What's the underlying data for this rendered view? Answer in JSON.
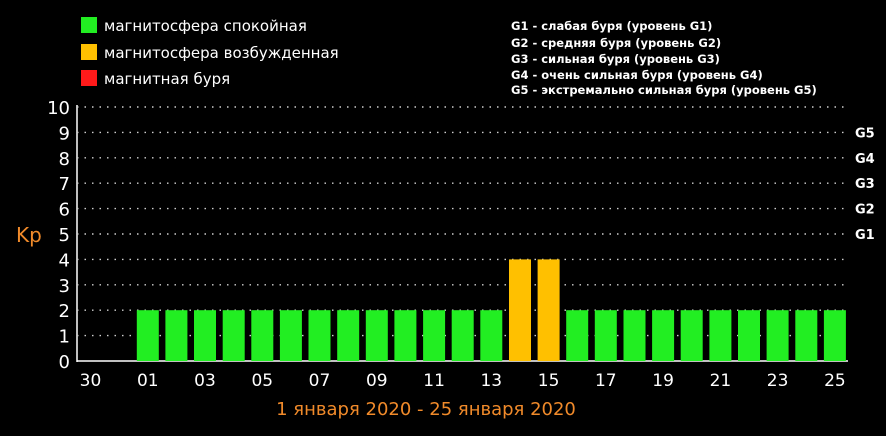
{
  "legend": {
    "items": [
      {
        "label": "магнитосфера спокойная",
        "color": "#22ee22"
      },
      {
        "label": "магнитосфера возбужденная",
        "color": "#ffc000"
      },
      {
        "label": "магнитная буря",
        "color": "#ff1a1a"
      }
    ],
    "storm_levels": [
      "G1 - слабая буря (уровень G1)",
      "G2 - средняя буря (уровень G2)",
      "G3 - сильная буря (уровень G3)",
      "G4 - очень сильная буря (уровень G4)",
      "G5 - экстремально сильная буря (уровень G5)"
    ]
  },
  "colors": {
    "background": "#000000",
    "axis": "#ffffff",
    "quiet": "#22ee22",
    "excited": "#ffc000",
    "storm": "#ff1a1a",
    "label_accent": "#f08a2a"
  },
  "chart_data": {
    "type": "bar",
    "ylabel": "Kp",
    "xlabel": "1 января 2020 - 25 января 2020",
    "ylim": [
      0,
      10
    ],
    "yticks": [
      "0",
      "1",
      "2",
      "3",
      "4",
      "5",
      "6",
      "7",
      "8",
      "9",
      "10"
    ],
    "right_axis_labels": [
      {
        "label": "G1",
        "at": 5
      },
      {
        "label": "G2",
        "at": 6
      },
      {
        "label": "G3",
        "at": 7
      },
      {
        "label": "G4",
        "at": 8
      },
      {
        "label": "G5",
        "at": 9
      }
    ],
    "grid": "dotted horizontal",
    "days": [
      "30",
      "31",
      "01",
      "02",
      "03",
      "04",
      "05",
      "06",
      "07",
      "08",
      "09",
      "10",
      "11",
      "12",
      "13",
      "14",
      "15",
      "16",
      "17",
      "18",
      "19",
      "20",
      "21",
      "22",
      "23",
      "24",
      "25"
    ],
    "xtick_labels": [
      "30",
      "01",
      "03",
      "05",
      "07",
      "09",
      "11",
      "13",
      "15",
      "17",
      "19",
      "21",
      "23",
      "25"
    ],
    "values": [
      null,
      null,
      2,
      2,
      2,
      2,
      2,
      2,
      2,
      2,
      2,
      2,
      2,
      2,
      2,
      4,
      4,
      2,
      2,
      2,
      2,
      2,
      2,
      2,
      2,
      2,
      2
    ],
    "status": [
      null,
      null,
      "quiet",
      "quiet",
      "quiet",
      "quiet",
      "quiet",
      "quiet",
      "quiet",
      "quiet",
      "quiet",
      "quiet",
      "quiet",
      "quiet",
      "quiet",
      "excited",
      "excited",
      "quiet",
      "quiet",
      "quiet",
      "quiet",
      "quiet",
      "quiet",
      "quiet",
      "quiet",
      "quiet",
      "quiet"
    ]
  }
}
